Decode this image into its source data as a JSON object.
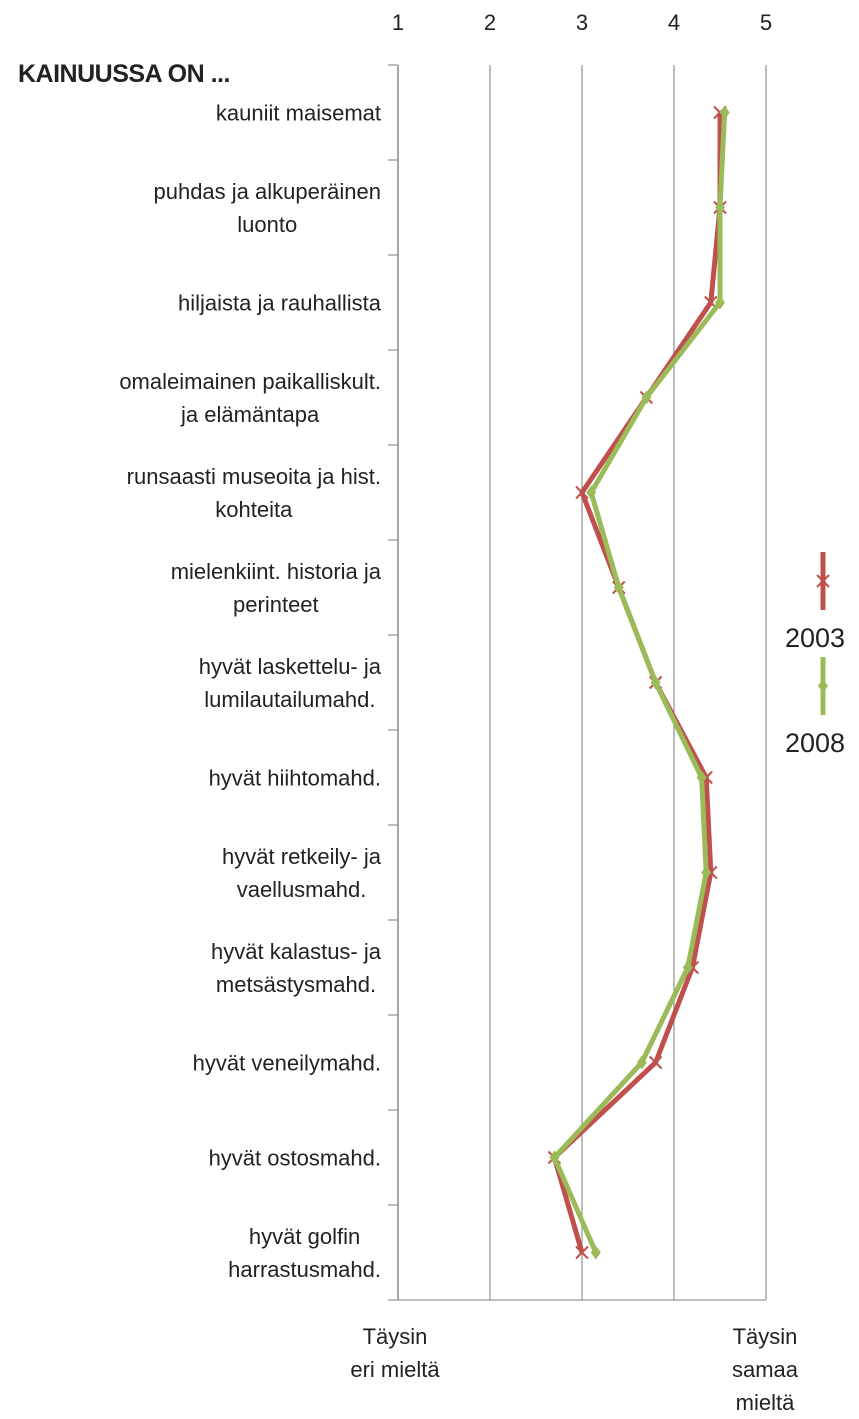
{
  "chart_data": {
    "type": "line",
    "title": "KAINUUSSA ON ...",
    "x_label_left": "Täysin\neri mieltä",
    "x_label_right": "Täysin\nsamaa mieltä",
    "categories": [
      "kauniit maisemat",
      "puhdas ja alkuperäinen\nluonto",
      "hiljaista ja rauhallista",
      "omaleimainen paikalliskult.\nja elämäntapa",
      "runsaasti museoita ja hist.\nkohteita",
      "mielenkiint. historia ja\nperinteet",
      "hyvät laskettelu- ja\nlumilautailumahd.",
      "hyvät hiihtomahd.",
      "hyvät retkeily- ja\nvaellusmahd.",
      "hyvät kalastus- ja\nmetsästysmahd.",
      "hyvät veneilymahd.",
      "hyvät ostosmahd.",
      "hyvät golfin\nharrastusmahd."
    ],
    "series": [
      {
        "name": "2003",
        "color": "#c0504d",
        "values": [
          4.5,
          4.5,
          4.4,
          3.7,
          3.0,
          3.4,
          3.8,
          4.35,
          4.4,
          4.2,
          3.8,
          2.7,
          3.0
        ]
      },
      {
        "name": "2008",
        "color": "#9bbb59",
        "values": [
          4.55,
          4.5,
          4.5,
          3.7,
          3.1,
          3.4,
          3.8,
          4.3,
          4.35,
          4.15,
          3.65,
          2.7,
          3.15
        ]
      }
    ],
    "xlim": [
      1,
      5
    ],
    "xticks": [
      1,
      2,
      3,
      4,
      5
    ],
    "grid": true
  }
}
